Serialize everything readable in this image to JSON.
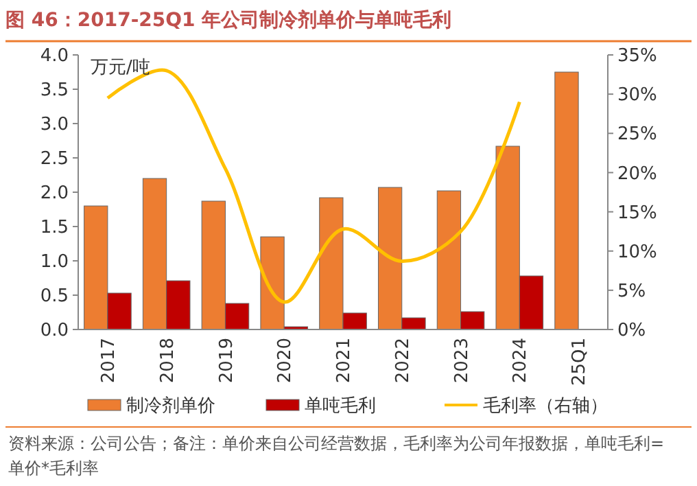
{
  "chart_data": {
    "type": "bar",
    "title": "图 46：2017-25Q1 年公司制冷剂单价与单吨毛利",
    "ylabel": "万元/吨",
    "categories": [
      "2017",
      "2018",
      "2019",
      "2020",
      "2021",
      "2022",
      "2023",
      "2024",
      "25Q1"
    ],
    "series": [
      {
        "name": "制冷剂单价",
        "color": "#ed7d31",
        "values": [
          1.8,
          2.2,
          1.87,
          1.35,
          1.92,
          2.07,
          2.02,
          2.67,
          3.75
        ]
      },
      {
        "name": "单吨毛利",
        "color": "#c00000",
        "values": [
          0.53,
          0.71,
          0.38,
          0.04,
          0.24,
          0.17,
          0.26,
          0.78,
          null
        ]
      },
      {
        "name": "毛利率（右轴）",
        "type": "line",
        "axis": "y2",
        "color": "#ffc000",
        "values": [
          29.5,
          33,
          20.5,
          3.5,
          12.8,
          8.7,
          12.5,
          29,
          null
        ]
      }
    ],
    "ylim": [
      0,
      4
    ],
    "yticks": [
      {
        "value": 0,
        "label": "0.0"
      },
      {
        "value": 0.5,
        "label": "0.5"
      },
      {
        "value": 1,
        "label": "1.0"
      },
      {
        "value": 1.5,
        "label": "1.5"
      },
      {
        "value": 2,
        "label": "2.0"
      },
      {
        "value": 2.5,
        "label": "2.5"
      },
      {
        "value": 3,
        "label": "3.0"
      },
      {
        "value": 3.5,
        "label": "3.5"
      },
      {
        "value": 4,
        "label": "4.0"
      }
    ],
    "y2lim": [
      0,
      35
    ],
    "y2ticks": [
      {
        "value": 0,
        "label": "0%"
      },
      {
        "value": 5,
        "label": "5%"
      },
      {
        "value": 10,
        "label": "10%"
      },
      {
        "value": 15,
        "label": "15%"
      },
      {
        "value": 20,
        "label": "20%"
      },
      {
        "value": 25,
        "label": "25%"
      },
      {
        "value": 30,
        "label": "30%"
      },
      {
        "value": 35,
        "label": "35%"
      }
    ],
    "legend": "bottom",
    "grid": false,
    "annotations": [
      "资料来源：公司公告；备注：单价来自公司经营数据，毛利率为公司年报数据，单吨毛利=单价*毛利率"
    ]
  }
}
